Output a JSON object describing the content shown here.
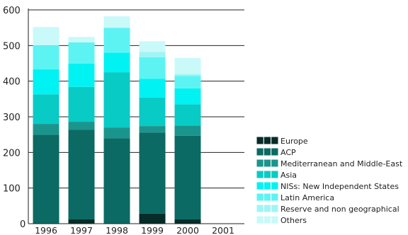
{
  "chart_data": {
    "type": "bar",
    "stacked": true,
    "title": "",
    "xlabel": "",
    "ylabel": "",
    "ylim": [
      0,
      600
    ],
    "yticks": [
      0,
      100,
      200,
      300,
      400,
      500,
      600
    ],
    "grid": "horizontal",
    "legend_position": "bottom-right",
    "categories": [
      "1996",
      "1997",
      "1998",
      "1999",
      "2000",
      "2001"
    ],
    "series": [
      {
        "name": "Europe",
        "color": "#052c28",
        "values": [
          0,
          12,
          0,
          28,
          12,
          0
        ]
      },
      {
        "name": "ACP",
        "color": "#0b6a63",
        "values": [
          250,
          252,
          240,
          228,
          235,
          0
        ]
      },
      {
        "name": "Mediterranean and Middle-East",
        "color": "#1a958e",
        "values": [
          30,
          22,
          30,
          18,
          28,
          0
        ]
      },
      {
        "name": "Asia",
        "color": "#08cbc5",
        "values": [
          83,
          98,
          155,
          80,
          60,
          0
        ]
      },
      {
        "name": "NISs: New Independent States",
        "color": "#00f2f2",
        "values": [
          70,
          65,
          55,
          53,
          45,
          0
        ]
      },
      {
        "name": "Latin America",
        "color": "#5ef3f3",
        "values": [
          67,
          60,
          70,
          60,
          35,
          0
        ]
      },
      {
        "name": "Reserve and non geographical",
        "color": "#9ff5f5",
        "values": [
          0,
          0,
          0,
          15,
          5,
          0
        ]
      },
      {
        "name": "Others",
        "color": "#c9f9f9",
        "values": [
          52,
          15,
          32,
          30,
          45,
          0
        ]
      }
    ]
  }
}
